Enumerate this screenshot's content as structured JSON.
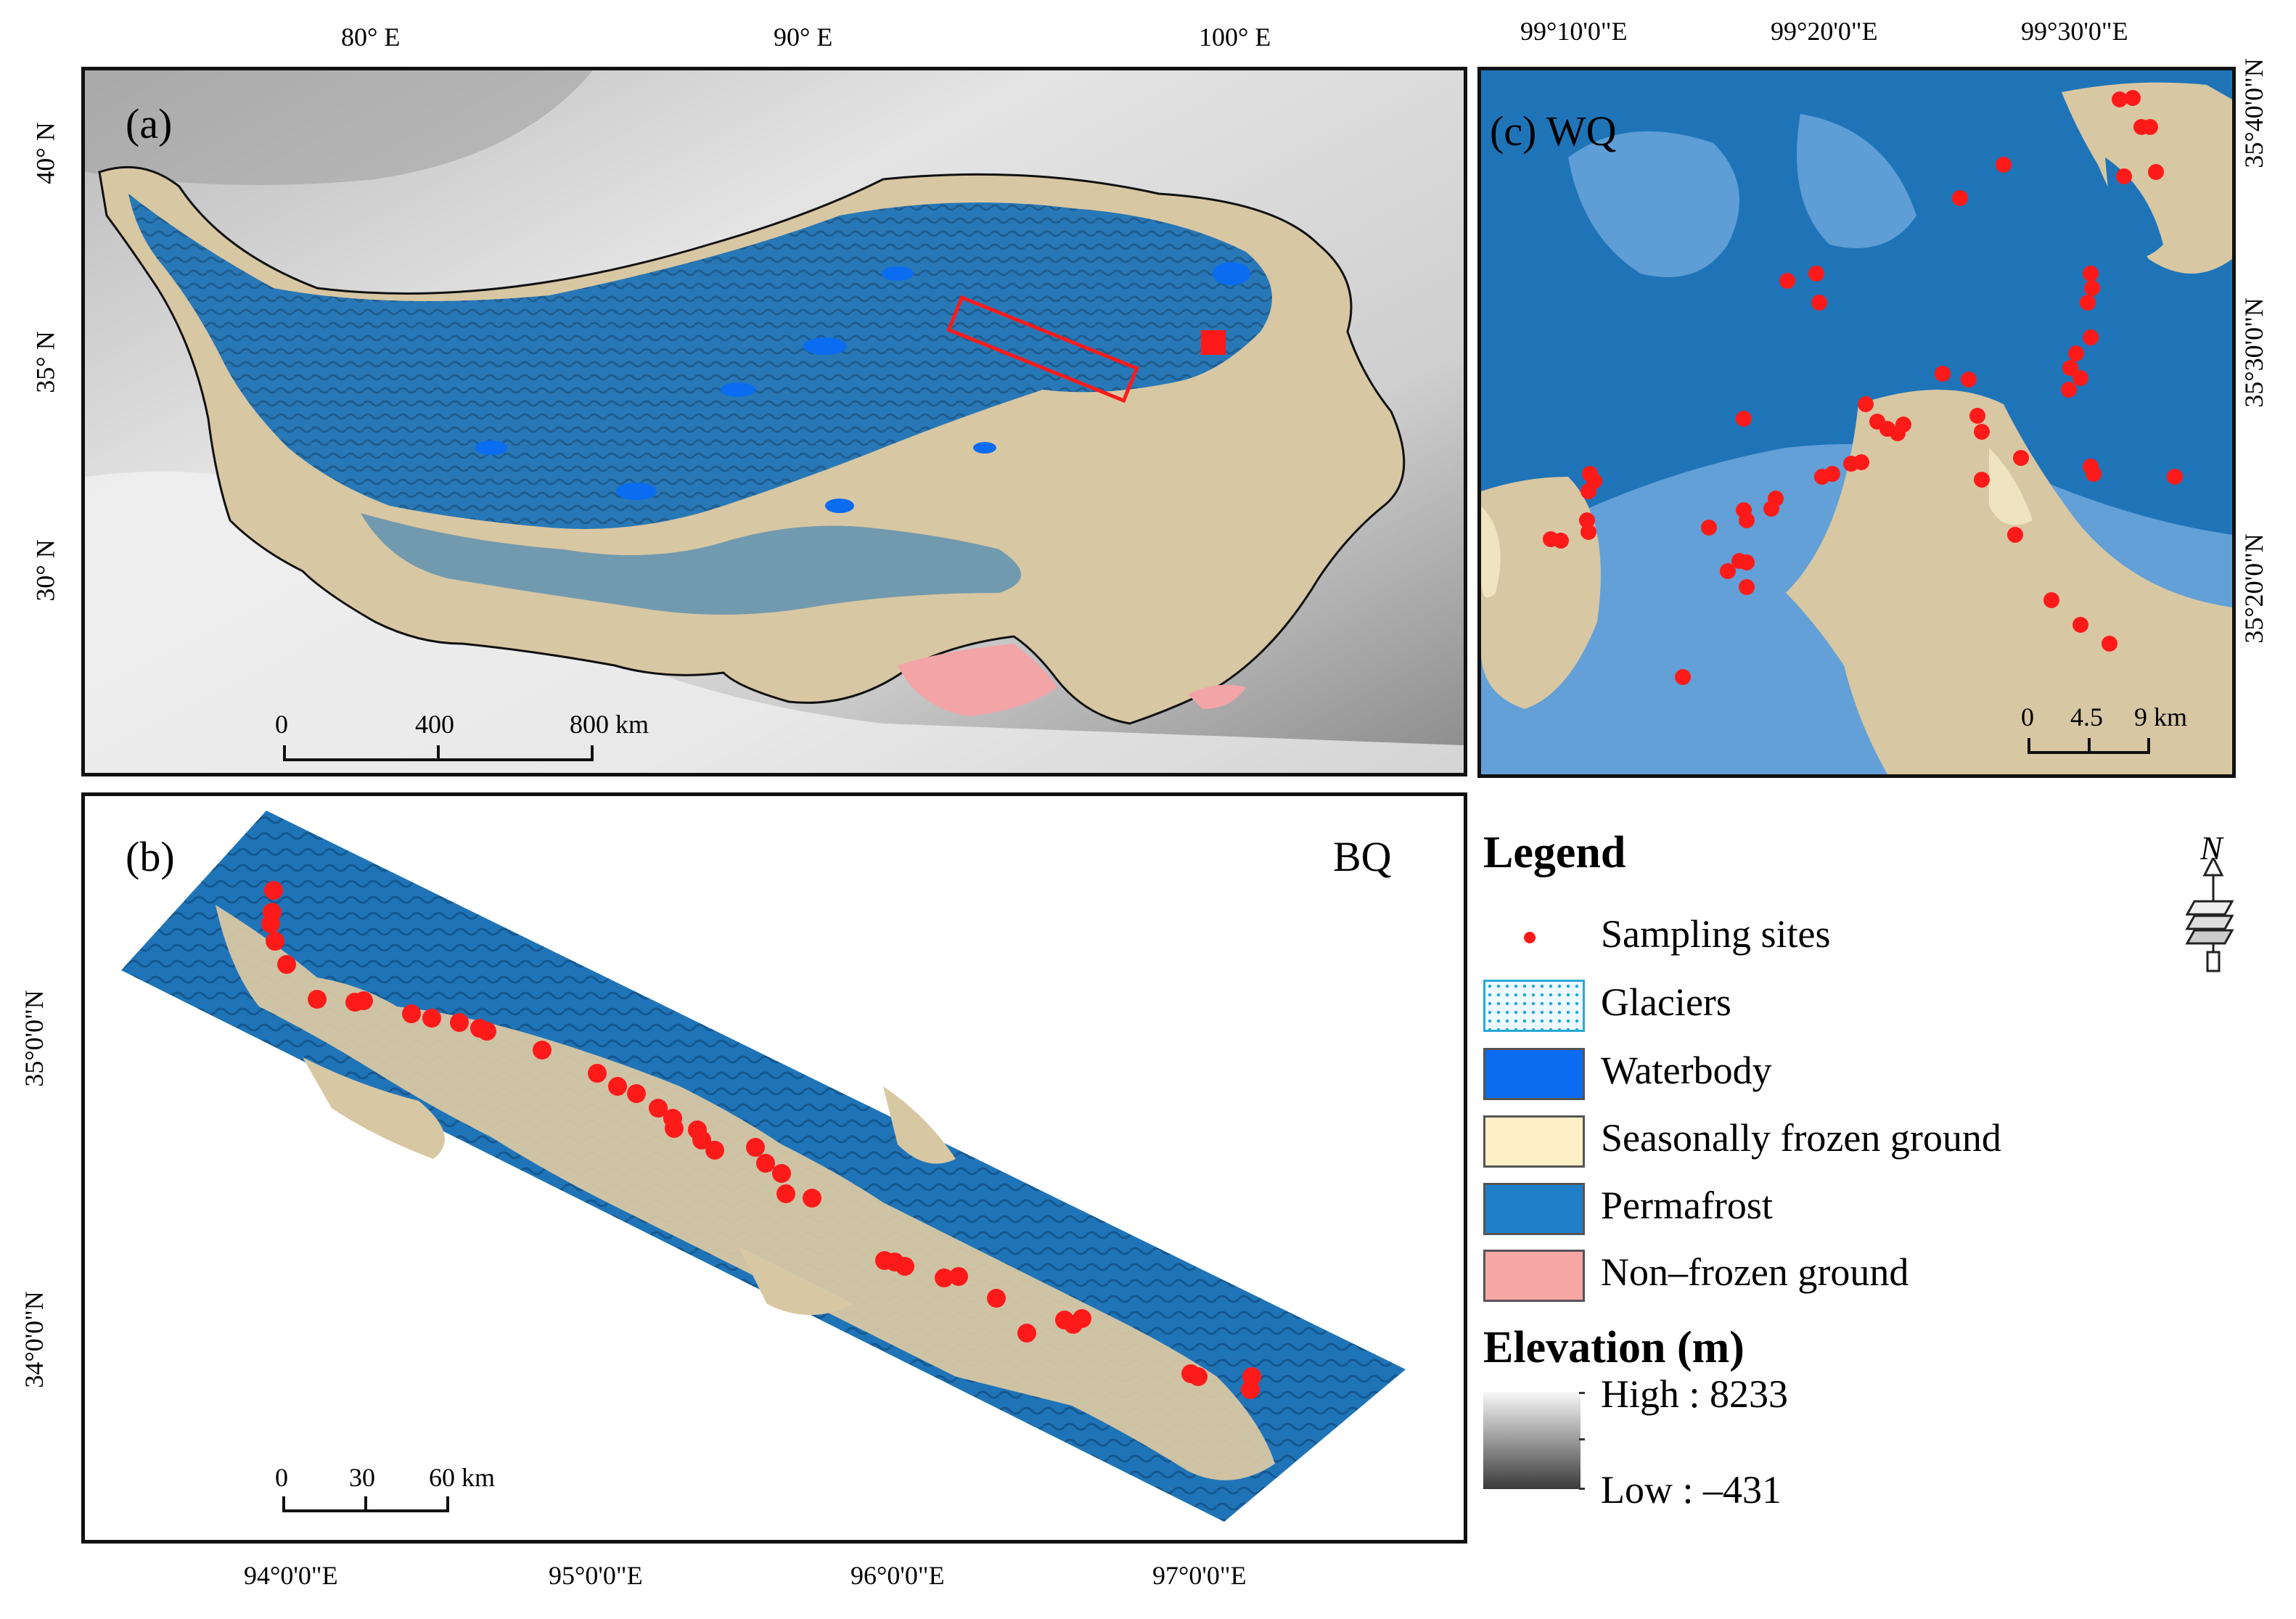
{
  "panel_a": {
    "label": "(a)",
    "lon_ticks": [
      "80° E",
      "90° E",
      "100° E"
    ],
    "lat_ticks": [
      "40° N",
      "35° N",
      "30° N"
    ],
    "scale": {
      "ticks": [
        "0",
        "400",
        "800 km"
      ]
    }
  },
  "panel_b": {
    "label": "(b)",
    "name": "BQ",
    "lon_ticks": [
      "94°0'0\"E",
      "95°0'0\"E",
      "96°0'0\"E",
      "97°0'0\"E"
    ],
    "lat_ticks": [
      "35°0'0\"N",
      "34°0'0\"N"
    ],
    "scale": {
      "ticks": [
        "0",
        "30",
        "60 km"
      ]
    }
  },
  "panel_c": {
    "label": "(c)",
    "name": "WQ",
    "lon_ticks": [
      "99°10'0\"E",
      "99°20'0\"E",
      "99°30'0\"E"
    ],
    "lat_ticks": [
      "35°40'0\"N",
      "35°30'0\"N",
      "35°20'0\"N"
    ],
    "scale": {
      "ticks": [
        "0",
        "4.5",
        "9 km"
      ]
    }
  },
  "legend": {
    "title": "Legend",
    "items": [
      {
        "label": "Sampling sites",
        "color": "#ff1a1a"
      },
      {
        "label": "Glaciers",
        "color": "#e6f7ff"
      },
      {
        "label": "Waterbody",
        "color": "#0a6cf0"
      },
      {
        "label": "Seasonally frozen ground",
        "color": "#fdf0c8"
      },
      {
        "label": "Permafrost",
        "color": "#1f7fc8"
      },
      {
        "label": "Non–frozen ground",
        "color": "#f7a6a6"
      }
    ],
    "elevation": {
      "title": "Elevation (m)",
      "high_label": "High : 8233",
      "low_label": "Low : –431"
    }
  },
  "north_arrow": {
    "letter": "N"
  },
  "colors": {
    "permafrost": "#1f74b8",
    "permafrost_dark": "#15578f",
    "seasonal": "#d8c7a3",
    "seasonal_light": "#f0e3c0",
    "waterbody": "#0a6cf0",
    "nonfrozen": "#f3a4a6",
    "light_blue": "#6ea8dc",
    "site": "#ff1a1a"
  }
}
